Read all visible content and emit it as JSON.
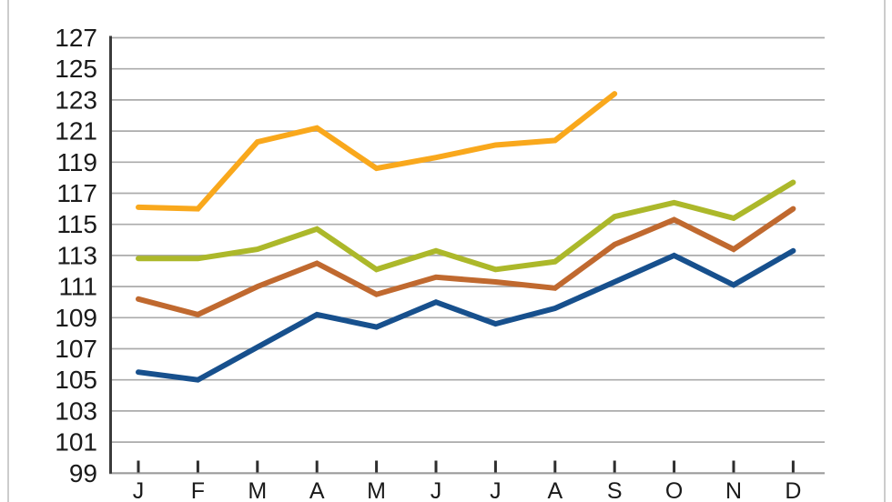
{
  "page": {
    "background": "#ffffff",
    "border_color": "#cccccc"
  },
  "chart_data": {
    "type": "line",
    "title": "",
    "xlabel": "",
    "ylabel": "",
    "grid": true,
    "legend": false,
    "ylim": [
      99,
      127
    ],
    "ytick_step": 2,
    "categories": [
      "J",
      "F",
      "M",
      "A",
      "M",
      "J",
      "J",
      "A",
      "S",
      "O",
      "N",
      "D"
    ],
    "y_tick_labels": [
      "127",
      "125",
      "123",
      "121",
      "119",
      "117",
      "115",
      "113",
      "111",
      "109",
      "107",
      "105",
      "103",
      "101",
      "99"
    ],
    "series": [
      {
        "name": "amber",
        "color": "#F9A81C",
        "values": [
          116.1,
          116.0,
          120.3,
          121.2,
          118.6,
          119.3,
          120.1,
          120.4,
          123.4,
          null,
          null,
          null
        ]
      },
      {
        "name": "olive",
        "color": "#ACB82A",
        "values": [
          112.8,
          112.8,
          113.4,
          114.7,
          112.1,
          113.3,
          112.1,
          112.6,
          115.5,
          116.4,
          115.4,
          117.7
        ]
      },
      {
        "name": "rust",
        "color": "#C0692F",
        "values": [
          110.2,
          109.2,
          111.0,
          112.5,
          110.5,
          111.6,
          111.3,
          110.9,
          113.7,
          115.3,
          113.4,
          116.0
        ]
      },
      {
        "name": "navy",
        "color": "#17508D",
        "values": [
          105.5,
          105.0,
          107.1,
          109.2,
          108.4,
          110.0,
          108.6,
          109.6,
          111.3,
          113.0,
          111.1,
          113.3
        ]
      }
    ],
    "colors": {
      "axis": "#3B3B3B",
      "gridline": "#ABABAB",
      "baseline": "#9B9B9B",
      "tick": "#2E2E2E",
      "label": "#1A1A1A"
    }
  }
}
